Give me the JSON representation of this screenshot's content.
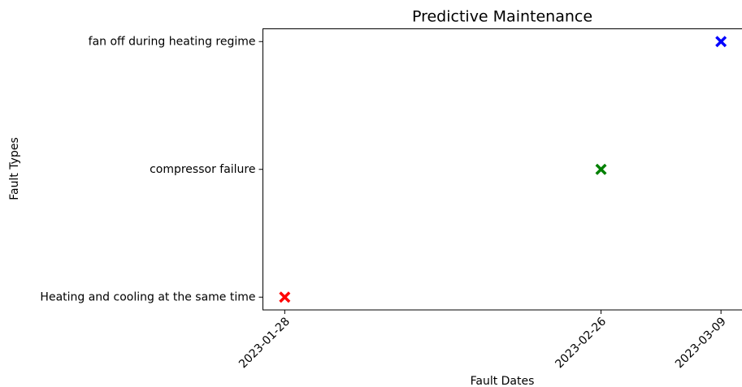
{
  "chart_data": {
    "type": "scatter",
    "title": "Predictive Maintenance",
    "x_label": "Fault Dates",
    "y_label": "Fault Types",
    "x": [
      "2023-01-28",
      "2023-02-26",
      "2023-03-09"
    ],
    "values": [
      "Heating and cooling at the same time",
      "compressor failure",
      "fan off during heating regime"
    ],
    "colors": [
      "#ff0000",
      "#008000",
      "#0000ff"
    ],
    "categories": [
      "Heating and cooling at the same time",
      "compressor failure",
      "fan off during heating regime"
    ],
    "xlim": [
      "2023-01-26",
      "2023-03-11"
    ],
    "xticks": [
      "2023-01-28",
      "2023-02-26",
      "2023-03-09"
    ],
    "ylim": [
      -0.1,
      2.1
    ]
  }
}
